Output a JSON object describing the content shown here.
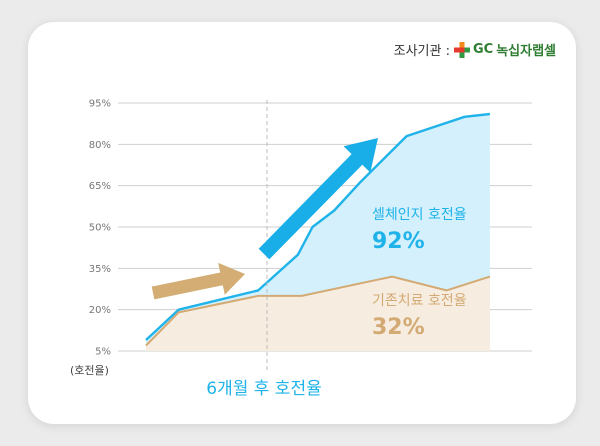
{
  "survey": {
    "label": "조사기관 :",
    "org_name": "GC 녹십자랩셀",
    "org_gc": "GC",
    "org_rest": "녹십자랩셀"
  },
  "colors": {
    "cell_line": "#1fb3ea",
    "cell_fill": "#d4f0fc",
    "conv_line": "#d3aa74",
    "conv_fill": "#f7ece0",
    "arrow_blue": "#19aee8",
    "arrow_tan": "#d4ad75",
    "grid": "#cfcfcf"
  },
  "icons": {
    "logo": "cross-logo-icon"
  },
  "chart_data": {
    "type": "area",
    "ylabel": "(호전율)",
    "yticks": [
      "95%",
      "80%",
      "65%",
      "50%",
      "35%",
      "20%",
      "5%"
    ],
    "ylim": [
      5,
      95
    ],
    "marker_caption": "6개월 후 호전율",
    "series": [
      {
        "name": "셀체인지 호전율",
        "final_label": "92%",
        "x": [
          0,
          0.09,
          0.31,
          0.42,
          0.46,
          0.52,
          0.59,
          0.72,
          0.88,
          0.95
        ],
        "values": [
          9,
          20,
          27,
          40,
          50,
          56,
          66,
          83,
          90,
          91
        ]
      },
      {
        "name": "기존치료 호전율",
        "final_label": "32%",
        "x": [
          0,
          0.09,
          0.31,
          0.43,
          0.68,
          0.83,
          0.95
        ],
        "values": [
          7,
          19,
          25,
          25,
          32,
          27,
          32
        ]
      }
    ]
  }
}
